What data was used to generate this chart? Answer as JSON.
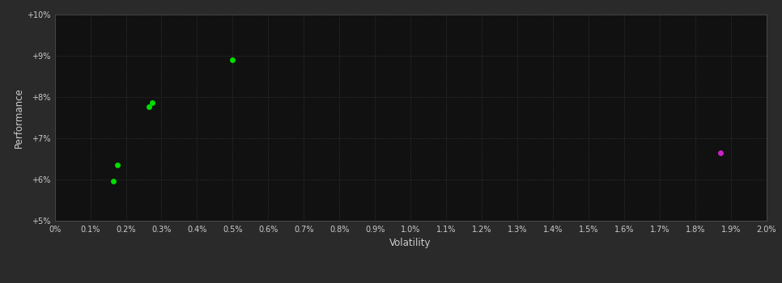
{
  "background_color": "#2a2a2a",
  "plot_bg_color": "#111111",
  "grid_color": "#444444",
  "text_color": "#cccccc",
  "xlabel": "Volatility",
  "ylabel": "Performance",
  "xlim": [
    0.0,
    0.02
  ],
  "ylim": [
    0.05,
    0.1
  ],
  "xtick_step": 0.001,
  "ytick_step": 0.01,
  "green_points": [
    [
      0.00165,
      0.0595
    ],
    [
      0.00175,
      0.0635
    ],
    [
      0.00265,
      0.0775
    ],
    [
      0.00275,
      0.0785
    ],
    [
      0.005,
      0.089
    ]
  ],
  "magenta_points": [
    [
      0.0187,
      0.0665
    ]
  ],
  "green_color": "#00dd00",
  "magenta_color": "#cc22cc",
  "marker_size": 5,
  "figsize": [
    9.66,
    3.5
  ],
  "dpi": 100
}
